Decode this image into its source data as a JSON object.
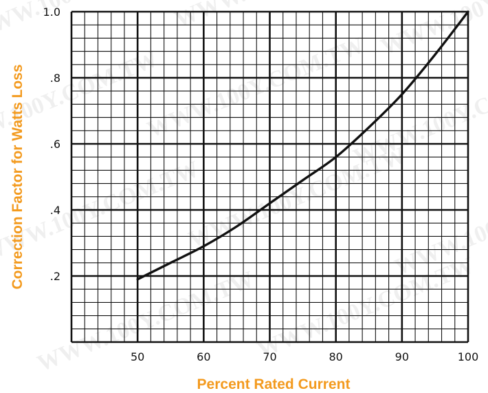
{
  "chart_data": {
    "type": "line",
    "title": "",
    "xlabel": "Percent Rated Current",
    "ylabel": "Correction Factor for Watts Loss",
    "xlim": [
      40,
      100
    ],
    "ylim": [
      0,
      1.0
    ],
    "x_ticks": [
      50,
      60,
      70,
      80,
      90,
      100
    ],
    "x_tick_labels": [
      "50",
      "60",
      "70",
      "80",
      "90",
      "100"
    ],
    "y_ticks": [
      0.2,
      0.4,
      0.6,
      0.8,
      1.0
    ],
    "y_tick_labels": [
      ".2",
      ".4",
      ".6",
      ".8",
      "1.0"
    ],
    "grid": true,
    "legend": "none",
    "series": [
      {
        "x": [
          50,
          55,
          60,
          65,
          70,
          75,
          80,
          85,
          90,
          95,
          100
        ],
        "y": [
          0.19,
          0.24,
          0.29,
          0.35,
          0.42,
          0.49,
          0.56,
          0.65,
          0.75,
          0.87,
          1.0
        ]
      }
    ],
    "colors": {
      "line": "#111111",
      "grid": "#111111",
      "axis_title": "#f39a1e"
    }
  },
  "watermark": "WWW.100Y.COM.TW"
}
